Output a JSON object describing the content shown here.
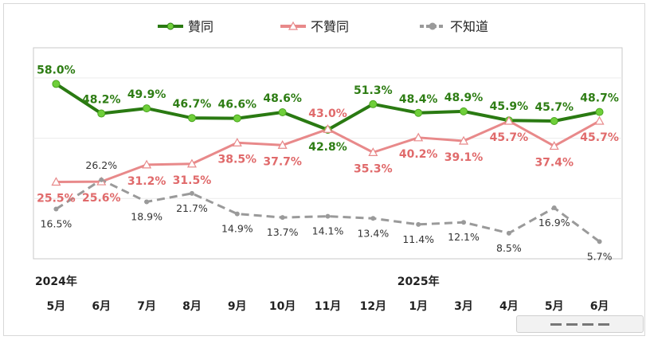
{
  "chart_data": {
    "type": "line",
    "title": "",
    "xlabel": "",
    "ylabel": "",
    "ylim": [
      0,
      70
    ],
    "grid": true,
    "legend_placement": "top",
    "year_labels": [
      {
        "index": 0,
        "text": "2024年"
      },
      {
        "index": 8,
        "text": "2025年"
      }
    ],
    "categories": [
      "5月",
      "6月",
      "7月",
      "8月",
      "9月",
      "10月",
      "11月",
      "12月",
      "1月",
      "3月",
      "4月",
      "5月",
      "6月"
    ],
    "series": [
      {
        "name": "贊同",
        "color": "#2a7a12",
        "marker_color": "#6fcf3a",
        "dash": false,
        "values": [
          58.0,
          48.2,
          49.9,
          46.7,
          46.6,
          48.6,
          42.8,
          51.3,
          48.4,
          48.9,
          45.9,
          45.7,
          48.7
        ],
        "labels": [
          "58.0%",
          "48.2%",
          "49.9%",
          "46.7%",
          "46.6%",
          "48.6%",
          "42.8%",
          "51.3%",
          "48.4%",
          "48.9%",
          "45.9%",
          "45.7%",
          "48.7%"
        ]
      },
      {
        "name": "不贊同",
        "color": "#e8898a",
        "marker_color": "#f4b9b9",
        "dash": false,
        "values": [
          25.5,
          25.6,
          31.2,
          31.5,
          38.5,
          37.7,
          43.0,
          35.3,
          40.2,
          39.1,
          45.7,
          37.4,
          45.7
        ],
        "labels": [
          "25.5%",
          "25.6%",
          "31.2%",
          "31.5%",
          "38.5%",
          "37.7%",
          "43.0%",
          "35.3%",
          "40.2%",
          "39.1%",
          "45.7%",
          "37.4%",
          "45.7%"
        ]
      },
      {
        "name": "不知道",
        "color": "#9a9a9a",
        "marker_color": "#9a9a9a",
        "dash": true,
        "values": [
          16.5,
          26.2,
          18.9,
          21.7,
          14.9,
          13.7,
          14.1,
          13.4,
          11.4,
          12.1,
          8.5,
          16.9,
          5.7
        ],
        "labels": [
          "16.5%",
          "26.2%",
          "18.9%",
          "21.7%",
          "14.9%",
          "13.7%",
          "14.1%",
          "13.4%",
          "11.4%",
          "12.1%",
          "8.5%",
          "16.9%",
          "5.7%"
        ]
      }
    ]
  }
}
